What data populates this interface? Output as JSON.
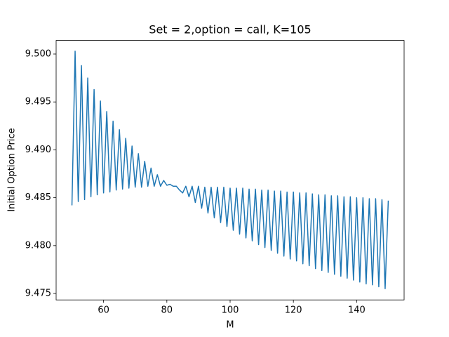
{
  "chart_data": {
    "type": "line",
    "title": "Set = 2,option = call, K=105",
    "xlabel": "M",
    "ylabel": "Initial Option Price",
    "color": "#1f77b4",
    "x": [
      50,
      51,
      52,
      53,
      54,
      55,
      56,
      57,
      58,
      59,
      60,
      61,
      62,
      63,
      64,
      65,
      66,
      67,
      68,
      69,
      70,
      71,
      72,
      73,
      74,
      75,
      76,
      77,
      78,
      79,
      80,
      81,
      82,
      83,
      84,
      85,
      86,
      87,
      88,
      89,
      90,
      91,
      92,
      93,
      94,
      95,
      96,
      97,
      98,
      99,
      100,
      101,
      102,
      103,
      104,
      105,
      106,
      107,
      108,
      109,
      110,
      111,
      112,
      113,
      114,
      115,
      116,
      117,
      118,
      119,
      120,
      121,
      122,
      123,
      124,
      125,
      126,
      127,
      128,
      129,
      130,
      131,
      132,
      133,
      134,
      135,
      136,
      137,
      138,
      139,
      140,
      141,
      142,
      143,
      144,
      145,
      146,
      147,
      148,
      149,
      150
    ],
    "values": [
      9.4842,
      9.5003,
      9.4846,
      9.4988,
      9.4848,
      9.4975,
      9.4851,
      9.4963,
      9.4853,
      9.4951,
      9.4855,
      9.494,
      9.4856,
      9.493,
      9.4858,
      9.4921,
      9.4859,
      9.4912,
      9.486,
      9.4904,
      9.4861,
      9.4896,
      9.4861,
      9.4888,
      9.4862,
      9.4881,
      9.4862,
      9.4874,
      9.4862,
      9.4868,
      9.4863,
      9.4864,
      9.4862,
      9.4862,
      9.4858,
      9.4855,
      9.4862,
      9.4851,
      9.4862,
      9.4845,
      9.4862,
      9.4839,
      9.4861,
      9.4834,
      9.4861,
      9.4829,
      9.4861,
      9.4824,
      9.4861,
      9.482,
      9.486,
      9.4816,
      9.486,
      9.4812,
      9.486,
      9.4808,
      9.4859,
      9.4805,
      9.4859,
      9.4801,
      9.4858,
      9.4798,
      9.4858,
      9.4795,
      9.4857,
      9.4792,
      9.4857,
      9.4789,
      9.4856,
      9.4786,
      9.4856,
      9.4784,
      9.4855,
      9.4781,
      9.4855,
      9.4779,
      9.4854,
      9.4776,
      9.4853,
      9.4774,
      9.4853,
      9.4772,
      9.4852,
      9.477,
      9.4852,
      9.4768,
      9.4851,
      9.4766,
      9.4851,
      9.4764,
      9.485,
      9.4762,
      9.485,
      9.476,
      9.4849,
      9.4759,
      9.4849,
      9.4757,
      9.4848,
      9.4755,
      9.4847
    ],
    "xlim": [
      45,
      155
    ],
    "xticks": [
      60,
      80,
      100,
      120,
      140
    ],
    "ylim": [
      9.47433,
      9.50142
    ],
    "yticks": [
      9.475,
      {
        "value": 9.48,
        "label": "9.480"
      },
      9.485,
      {
        "value": 9.49,
        "label": "9.490"
      },
      9.495,
      {
        "value": 9.5,
        "label": "9.500"
      }
    ]
  }
}
